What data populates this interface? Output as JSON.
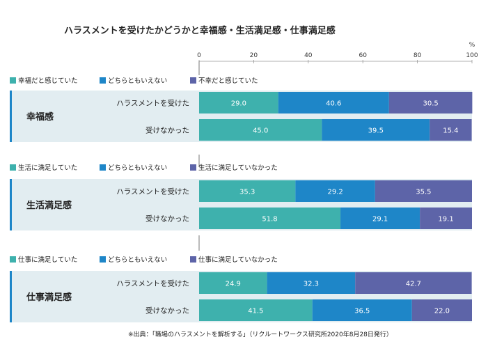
{
  "chart_data": {
    "type": "bar",
    "orientation": "horizontal",
    "stacked": true,
    "title": "ハラスメントを受けたかどうかと幸福感・生活満足感・仕事満足感",
    "axis": {
      "unit": "%",
      "xlim": [
        0,
        100
      ],
      "ticks": [
        "0",
        "20",
        "40",
        "60",
        "80",
        "100"
      ]
    },
    "colors": [
      "#3eb1ad",
      "#1e86c8",
      "#5d64a8"
    ],
    "groups": [
      {
        "name": "幸福感",
        "legend": [
          "幸福だと感じていた",
          "どちらともいえない",
          "不幸だと感じていた"
        ],
        "rows": [
          {
            "label": "ハラスメントを受けた",
            "values": [
              29.0,
              40.6,
              30.5
            ],
            "labels": [
              "29.0",
              "40.6",
              "30.5"
            ]
          },
          {
            "label": "受けなかった",
            "values": [
              45.0,
              39.5,
              15.4
            ],
            "labels": [
              "45.0",
              "39.5",
              "15.4"
            ]
          }
        ]
      },
      {
        "name": "生活満足感",
        "legend": [
          "生活に満足していた",
          "どちらともいえない",
          "生活に満足していなかった"
        ],
        "rows": [
          {
            "label": "ハラスメントを受けた",
            "values": [
              35.3,
              29.2,
              35.5
            ],
            "labels": [
              "35.3",
              "29.2",
              "35.5"
            ]
          },
          {
            "label": "受けなかった",
            "values": [
              51.8,
              29.1,
              19.1
            ],
            "labels": [
              "51.8",
              "29.1",
              "19.1"
            ]
          }
        ]
      },
      {
        "name": "仕事満足感",
        "legend": [
          "仕事に満足していた",
          "どちらともいえない",
          "仕事に満足していなかった"
        ],
        "rows": [
          {
            "label": "ハラスメントを受けた",
            "values": [
              24.9,
              32.3,
              42.7
            ],
            "labels": [
              "24.9",
              "32.3",
              "42.7"
            ]
          },
          {
            "label": "受けなかった",
            "values": [
              41.5,
              36.5,
              22.0
            ],
            "labels": [
              "41.5",
              "36.5",
              "22.0"
            ]
          }
        ]
      }
    ],
    "source": "※出典：「職場のハラスメントを解析する」（リクルートワークス研究所2020年8月28日発行）"
  }
}
